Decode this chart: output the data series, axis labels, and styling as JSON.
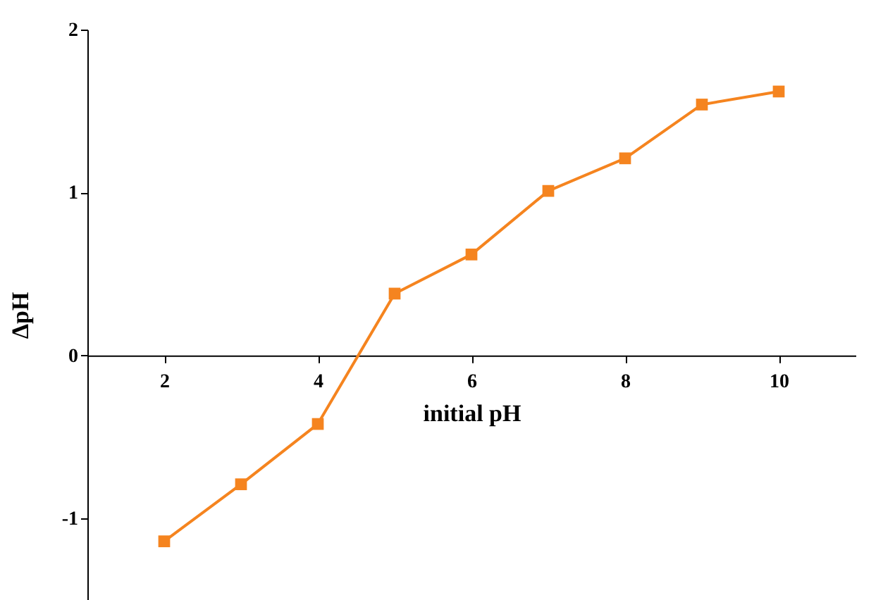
{
  "chart_data": {
    "type": "line",
    "xlabel": "initial pH",
    "ylabel": "ΔpH",
    "x": [
      2,
      3,
      4,
      5,
      6,
      7,
      8,
      9,
      10
    ],
    "series": [
      {
        "color": "#f5841f",
        "values": [
          -1.14,
          -0.79,
          -0.42,
          0.38,
          0.62,
          1.01,
          1.21,
          1.54,
          1.62
        ]
      }
    ],
    "xlim": [
      1,
      11
    ],
    "xticks": [
      2,
      4,
      6,
      8,
      10
    ],
    "ylim": [
      -1.5,
      2
    ],
    "yticks": [
      -1,
      0,
      1,
      2
    ],
    "grid": false,
    "marker": "square",
    "line_style": "solid"
  }
}
